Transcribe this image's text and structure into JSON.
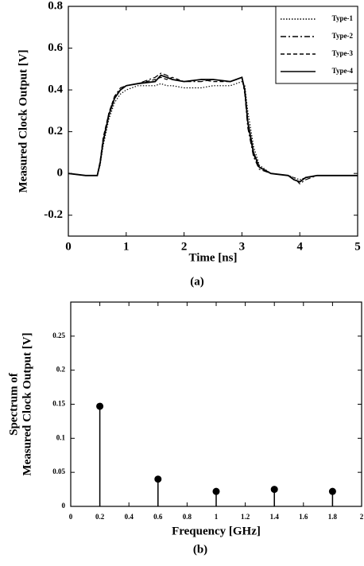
{
  "chart_data": [
    {
      "type": "line",
      "caption": "(a)",
      "xlabel": "Time [ns]",
      "ylabel": "Measured Clock Output [V]",
      "xlim": [
        0,
        5
      ],
      "ylim": [
        -0.3,
        0.8
      ],
      "xticks": [
        0,
        1,
        2,
        3,
        4,
        5
      ],
      "yticks": [
        -0.2,
        0,
        0.2,
        0.4,
        0.6,
        0.8
      ],
      "legend": "upper right",
      "x": [
        0,
        0.3,
        0.5,
        0.55,
        0.6,
        0.7,
        0.8,
        0.9,
        1.0,
        1.2,
        1.5,
        1.6,
        1.7,
        1.8,
        2.0,
        2.3,
        2.5,
        2.8,
        2.9,
        3.0,
        3.05,
        3.1,
        3.2,
        3.3,
        3.5,
        3.8,
        3.9,
        4.0,
        4.1,
        4.3,
        4.6,
        5.0
      ],
      "series": [
        {
          "name": "Type-1",
          "color": "#000",
          "dash": "dotted",
          "values": [
            0,
            -0.01,
            -0.01,
            0.04,
            0.13,
            0.26,
            0.34,
            0.38,
            0.4,
            0.42,
            0.42,
            0.43,
            0.42,
            0.42,
            0.41,
            0.41,
            0.42,
            0.42,
            0.43,
            0.44,
            0.42,
            0.3,
            0.13,
            0.04,
            0.0,
            -0.01,
            -0.02,
            -0.03,
            -0.02,
            -0.01,
            -0.01,
            -0.01
          ]
        },
        {
          "name": "Type-2",
          "color": "#000",
          "dash": "dashdot",
          "values": [
            0,
            -0.01,
            -0.01,
            0.05,
            0.16,
            0.29,
            0.37,
            0.41,
            0.42,
            0.43,
            0.46,
            0.48,
            0.47,
            0.45,
            0.44,
            0.44,
            0.45,
            0.44,
            0.45,
            0.46,
            0.38,
            0.22,
            0.08,
            0.02,
            0.0,
            -0.01,
            -0.02,
            -0.05,
            -0.03,
            -0.01,
            -0.01,
            -0.01
          ]
        },
        {
          "name": "Type-3",
          "color": "#000",
          "dash": "dashed",
          "values": [
            0,
            -0.01,
            -0.01,
            0.06,
            0.17,
            0.29,
            0.37,
            0.4,
            0.42,
            0.43,
            0.45,
            0.46,
            0.45,
            0.46,
            0.44,
            0.45,
            0.44,
            0.44,
            0.45,
            0.46,
            0.39,
            0.24,
            0.09,
            0.03,
            0.0,
            -0.01,
            -0.03,
            -0.04,
            -0.02,
            -0.01,
            -0.01,
            -0.01
          ]
        },
        {
          "name": "Type-4",
          "color": "#000",
          "dash": "solid",
          "values": [
            0,
            -0.01,
            -0.01,
            0.05,
            0.15,
            0.28,
            0.36,
            0.4,
            0.42,
            0.43,
            0.44,
            0.47,
            0.46,
            0.45,
            0.44,
            0.45,
            0.45,
            0.44,
            0.45,
            0.46,
            0.4,
            0.25,
            0.1,
            0.03,
            0.0,
            -0.01,
            -0.03,
            -0.04,
            -0.02,
            -0.01,
            -0.01,
            -0.01
          ]
        }
      ]
    },
    {
      "type": "stem",
      "caption": "(b)",
      "xlabel": "Frequency [GHz]",
      "ylabel": [
        "Spectrum of",
        "Measured Clock Output [V]"
      ],
      "xlim": [
        0,
        2
      ],
      "ylim": [
        0,
        0.3
      ],
      "xticks": [
        0,
        0.2,
        0.4,
        0.6,
        0.8,
        1,
        1.2,
        1.4,
        1.6,
        1.8,
        2
      ],
      "yticks": [
        0,
        0.05,
        0.1,
        0.15,
        0.2,
        0.25
      ],
      "x": [
        0.2,
        0.6,
        1,
        1.4,
        1.8
      ],
      "values": [
        0.147,
        0.04,
        0.022,
        0.025,
        0.022
      ],
      "color": "#000"
    }
  ]
}
